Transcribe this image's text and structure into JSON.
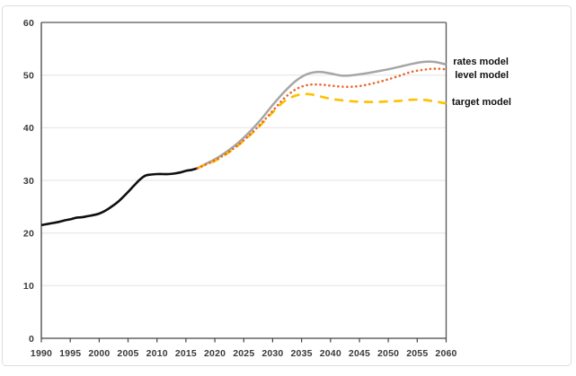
{
  "figure": {
    "background": "#ffffff",
    "outer_border_color": "#dedede",
    "plot_border_color": "#555555",
    "axis_color": "#444444",
    "gridline_color": "#e2e2e2",
    "tick_label_color": "#3a3a3a"
  },
  "chart_data": {
    "type": "line",
    "title": "",
    "xlabel": "",
    "ylabel": "",
    "xlim": [
      1990,
      2060
    ],
    "ylim": [
      0,
      60
    ],
    "x_ticks": [
      "1990",
      "1995",
      "2000",
      "2005",
      "2010",
      "2015",
      "2020",
      "2025",
      "2030",
      "2035",
      "2040",
      "2045",
      "2050",
      "2055",
      "2060"
    ],
    "y_ticks": [
      "0",
      "10",
      "20",
      "30",
      "40",
      "50",
      "60"
    ],
    "grid": "horizontal-major",
    "legend_position": "right-outside-inline-labels",
    "series": [
      {
        "name": "historical",
        "label": "",
        "color": "#0f0f0f",
        "style": "solid",
        "width": 2.6,
        "x": [
          1990,
          1991,
          1992,
          1993,
          1994,
          1995,
          1996,
          1997,
          1998,
          1999,
          2000,
          2001,
          2002,
          2003,
          2004,
          2005,
          2006,
          2007,
          2008,
          2009,
          2010,
          2011,
          2012,
          2013,
          2014,
          2015,
          2016,
          2017
        ],
        "y": [
          21.5,
          21.7,
          21.9,
          22.1,
          22.4,
          22.6,
          22.9,
          23.0,
          23.2,
          23.4,
          23.7,
          24.2,
          24.9,
          25.7,
          26.7,
          27.8,
          29.0,
          30.1,
          30.9,
          31.1,
          31.2,
          31.2,
          31.2,
          31.3,
          31.5,
          31.8,
          32.0,
          32.3
        ]
      },
      {
        "name": "rates-model",
        "label": "rates model",
        "color": "#a6a6a6",
        "style": "solid",
        "width": 2.5,
        "label_anchor": {
          "x": 2061.2,
          "y": 52.7
        },
        "x": [
          2017,
          2018,
          2020,
          2022,
          2024,
          2026,
          2028,
          2030,
          2032,
          2034,
          2036,
          2038,
          2040,
          2042,
          2044,
          2046,
          2048,
          2050,
          2052,
          2054,
          2056,
          2058,
          2060
        ],
        "y": [
          32.3,
          32.9,
          34.0,
          35.4,
          37.1,
          39.2,
          41.6,
          44.3,
          46.8,
          48.9,
          50.2,
          50.6,
          50.3,
          49.9,
          50.0,
          50.3,
          50.7,
          51.1,
          51.6,
          52.1,
          52.5,
          52.5,
          52.0
        ]
      },
      {
        "name": "target-model",
        "label": "target model",
        "color": "#ffc000",
        "style": "dashed",
        "width": 2.6,
        "label_anchor": {
          "x": 2061.0,
          "y": 45.0
        },
        "x": [
          2017,
          2018,
          2020,
          2022,
          2024,
          2026,
          2028,
          2030,
          2032,
          2034,
          2036,
          2038,
          2040,
          2042,
          2044,
          2046,
          2048,
          2050,
          2052,
          2054,
          2056,
          2058,
          2060
        ],
        "y": [
          32.3,
          32.8,
          33.7,
          35.0,
          36.6,
          38.5,
          40.6,
          42.9,
          45.0,
          46.1,
          46.4,
          46.0,
          45.5,
          45.2,
          45.0,
          44.9,
          44.9,
          45.0,
          45.1,
          45.3,
          45.3,
          45.0,
          44.6
        ]
      },
      {
        "name": "level-model",
        "label": "level model",
        "color": "#e8682b",
        "style": "dotted",
        "width": 2.6,
        "label_anchor": {
          "x": 2061.5,
          "y": 50.1
        },
        "x": [
          2017,
          2018,
          2020,
          2022,
          2024,
          2026,
          2028,
          2030,
          2032,
          2034,
          2036,
          2038,
          2040,
          2042,
          2044,
          2046,
          2048,
          2050,
          2052,
          2054,
          2056,
          2058,
          2060
        ],
        "y": [
          32.3,
          32.8,
          33.8,
          35.1,
          36.7,
          38.6,
          40.8,
          43.2,
          45.6,
          47.3,
          48.1,
          48.2,
          48.0,
          47.8,
          47.8,
          48.1,
          48.6,
          49.2,
          49.9,
          50.6,
          51.0,
          51.2,
          51.1
        ]
      }
    ]
  }
}
